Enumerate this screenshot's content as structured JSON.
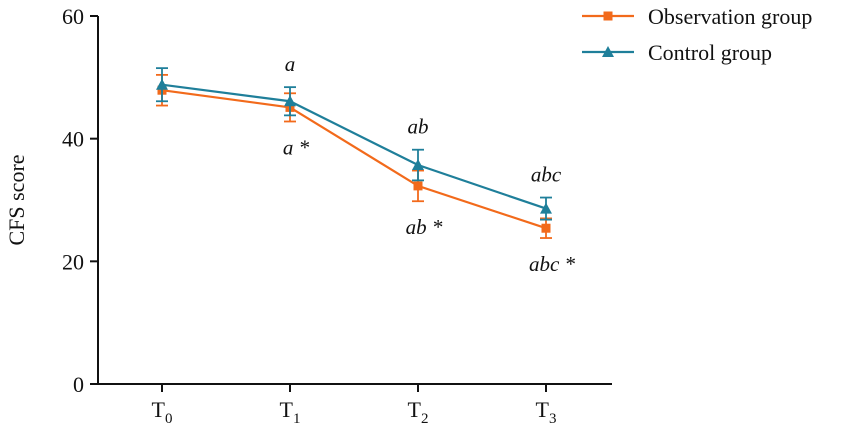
{
  "chart_data": {
    "type": "line",
    "ylabel": "CFS score",
    "ylim": [
      0,
      60
    ],
    "yticks": [
      "0",
      "20",
      "40",
      "60"
    ],
    "categories": [
      {
        "base": "T",
        "sub": "0"
      },
      {
        "base": "T",
        "sub": "1"
      },
      {
        "base": "T",
        "sub": "2"
      },
      {
        "base": "T",
        "sub": "3"
      }
    ],
    "series": [
      {
        "name": "Observation group",
        "color": "#f26a1b",
        "marker": "square",
        "values": [
          47.9,
          45.1,
          32.3,
          25.4
        ],
        "errors": [
          2.5,
          2.3,
          2.5,
          1.6
        ],
        "annotations": [
          "",
          "a *",
          "ab *",
          "abc *"
        ]
      },
      {
        "name": "Control group",
        "color": "#1f7f9a",
        "marker": "triangle",
        "values": [
          48.8,
          46.1,
          35.7,
          28.6
        ],
        "errors": [
          2.7,
          2.3,
          2.5,
          1.8
        ],
        "annotations": [
          "",
          "a",
          "ab",
          "abc"
        ]
      }
    ],
    "legend_position": "top-right",
    "grid": false
  }
}
